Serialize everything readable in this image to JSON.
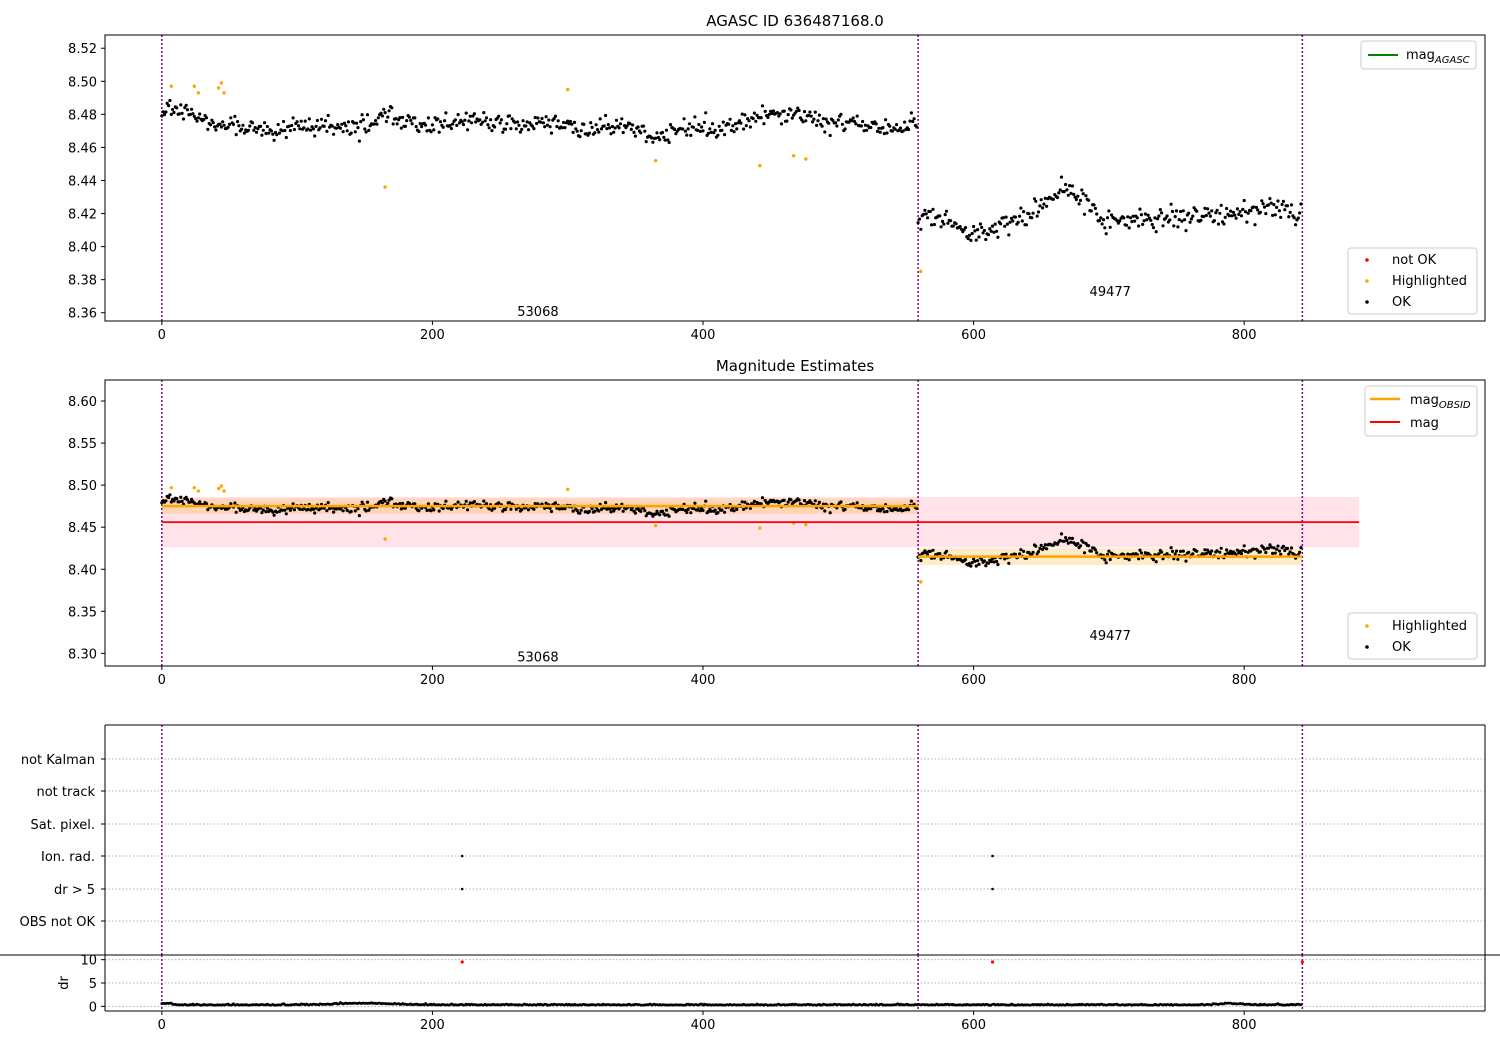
{
  "figure": {
    "title": "AGASC ID 636487168.0"
  },
  "colors": {
    "ok": "#000000",
    "highlighted": "#ffa500",
    "not_ok": "#ff0000",
    "mag_agasc": "#008000",
    "mag_line": "#ff0000",
    "mag_obsid": "#ffa500",
    "obs_boundary": "#800080"
  },
  "chart_data": [
    {
      "id": "top",
      "type": "scatter",
      "title": "AGASC ID 636487168.0",
      "xlim": [
        -42,
        978
      ],
      "ylim": [
        8.355,
        8.528
      ],
      "xticks": [
        0,
        200,
        400,
        600,
        800
      ],
      "xtick_labels": [
        "0",
        "200",
        "400",
        "600",
        "800"
      ],
      "yticks": [
        8.36,
        8.38,
        8.4,
        8.42,
        8.44,
        8.46,
        8.48,
        8.5,
        8.52
      ],
      "ytick_labels": [
        "8.36",
        "8.38",
        "8.40",
        "8.42",
        "8.44",
        "8.46",
        "8.48",
        "8.50",
        "8.52"
      ],
      "obs_boundaries": [
        0,
        559,
        843
      ],
      "obs_labels": [
        {
          "text": "53068",
          "x": 278,
          "y": 8.361
        },
        {
          "text": "49477",
          "x": 701,
          "y": 8.373
        }
      ],
      "segments": [
        {
          "x0": 0,
          "x1": 559,
          "level": 8.476,
          "noise": 0.007
        },
        {
          "x0": 559,
          "x1": 843,
          "level": 8.415,
          "noise": 0.008
        }
      ],
      "highlighted_points": [
        {
          "x": 7,
          "y": 8.497
        },
        {
          "x": 24,
          "y": 8.497
        },
        {
          "x": 27,
          "y": 8.493
        },
        {
          "x": 42,
          "y": 8.496
        },
        {
          "x": 44,
          "y": 8.499
        },
        {
          "x": 46,
          "y": 8.493
        },
        {
          "x": 165,
          "y": 8.436
        },
        {
          "x": 300,
          "y": 8.495
        },
        {
          "x": 365,
          "y": 8.452
        },
        {
          "x": 442,
          "y": 8.449
        },
        {
          "x": 467,
          "y": 8.455
        },
        {
          "x": 476,
          "y": 8.453
        },
        {
          "x": 561,
          "y": 8.385
        }
      ],
      "legends": [
        {
          "position": "upper right",
          "entries": [
            {
              "label": "mag",
              "subscript": "AGASC",
              "kind": "line",
              "color": "#008000"
            }
          ]
        },
        {
          "position": "lower right",
          "entries": [
            {
              "label": "not OK",
              "kind": "dot",
              "color": "#ff0000"
            },
            {
              "label": "Highlighted",
              "kind": "dot",
              "color": "#ffa500"
            },
            {
              "label": "OK",
              "kind": "dot",
              "color": "#000000"
            }
          ]
        }
      ]
    },
    {
      "id": "middle",
      "type": "scatter",
      "title": "Magnitude Estimates",
      "xlim": [
        -42,
        978
      ],
      "ylim": [
        8.285,
        8.625
      ],
      "xticks": [
        0,
        200,
        400,
        600,
        800
      ],
      "xtick_labels": [
        "0",
        "200",
        "400",
        "600",
        "800"
      ],
      "yticks": [
        8.3,
        8.35,
        8.4,
        8.45,
        8.5,
        8.55,
        8.6
      ],
      "ytick_labels": [
        "8.30",
        "8.35",
        "8.40",
        "8.45",
        "8.50",
        "8.55",
        "8.60"
      ],
      "obs_boundaries": [
        0,
        559,
        843
      ],
      "obs_labels": [
        {
          "text": "53068",
          "x": 278,
          "y": 8.296
        },
        {
          "text": "49477",
          "x": 701,
          "y": 8.322
        }
      ],
      "mag": {
        "value": 8.456,
        "band": [
          8.426,
          8.486
        ],
        "x0": 0,
        "x1": 885
      },
      "mag_obsid": [
        {
          "x0": 0,
          "x1": 559,
          "value": 8.475,
          "band": [
            8.466,
            8.484
          ]
        },
        {
          "x0": 559,
          "x1": 843,
          "value": 8.415,
          "band": [
            8.405,
            8.425
          ]
        }
      ],
      "legends": [
        {
          "position": "upper right",
          "entries": [
            {
              "label": "mag",
              "subscript": "OBSID",
              "kind": "line",
              "color": "#ffa500"
            },
            {
              "label": "mag",
              "kind": "line",
              "color": "#ff0000"
            }
          ]
        },
        {
          "position": "lower right",
          "entries": [
            {
              "label": "Highlighted",
              "kind": "dot",
              "color": "#ffa500"
            },
            {
              "label": "OK",
              "kind": "dot",
              "color": "#000000"
            }
          ]
        }
      ]
    },
    {
      "id": "flags",
      "type": "scatter",
      "xlim": [
        -42,
        978
      ],
      "categories": [
        "not Kalman",
        "not track",
        "Sat. pixel.",
        "Ion. rad.",
        "dr > 5",
        "OBS not OK"
      ],
      "obs_boundaries": [
        0,
        559,
        843
      ],
      "flag_points": [
        {
          "category": "Ion. rad.",
          "x": 222
        },
        {
          "category": "Ion. rad.",
          "x": 614
        },
        {
          "category": "dr > 5",
          "x": 222
        },
        {
          "category": "dr > 5",
          "x": 614
        }
      ]
    },
    {
      "id": "dr",
      "type": "scatter",
      "xlim": [
        -42,
        978
      ],
      "ylim": [
        -1,
        11
      ],
      "ylabel": "dr",
      "xticks": [
        0,
        200,
        400,
        600,
        800
      ],
      "xtick_labels": [
        "0",
        "200",
        "400",
        "600",
        "800"
      ],
      "yticks": [
        0,
        5,
        10
      ],
      "ytick_labels": [
        "0",
        "5",
        "10"
      ],
      "obs_boundaries": [
        0,
        559,
        843
      ],
      "outliers": [
        {
          "x": 222,
          "y": 9.5
        },
        {
          "x": 614,
          "y": 9.5
        },
        {
          "x": 843,
          "y": 9.5
        }
      ],
      "n_points": 843,
      "typical_range": [
        0.1,
        1.0
      ]
    }
  ]
}
